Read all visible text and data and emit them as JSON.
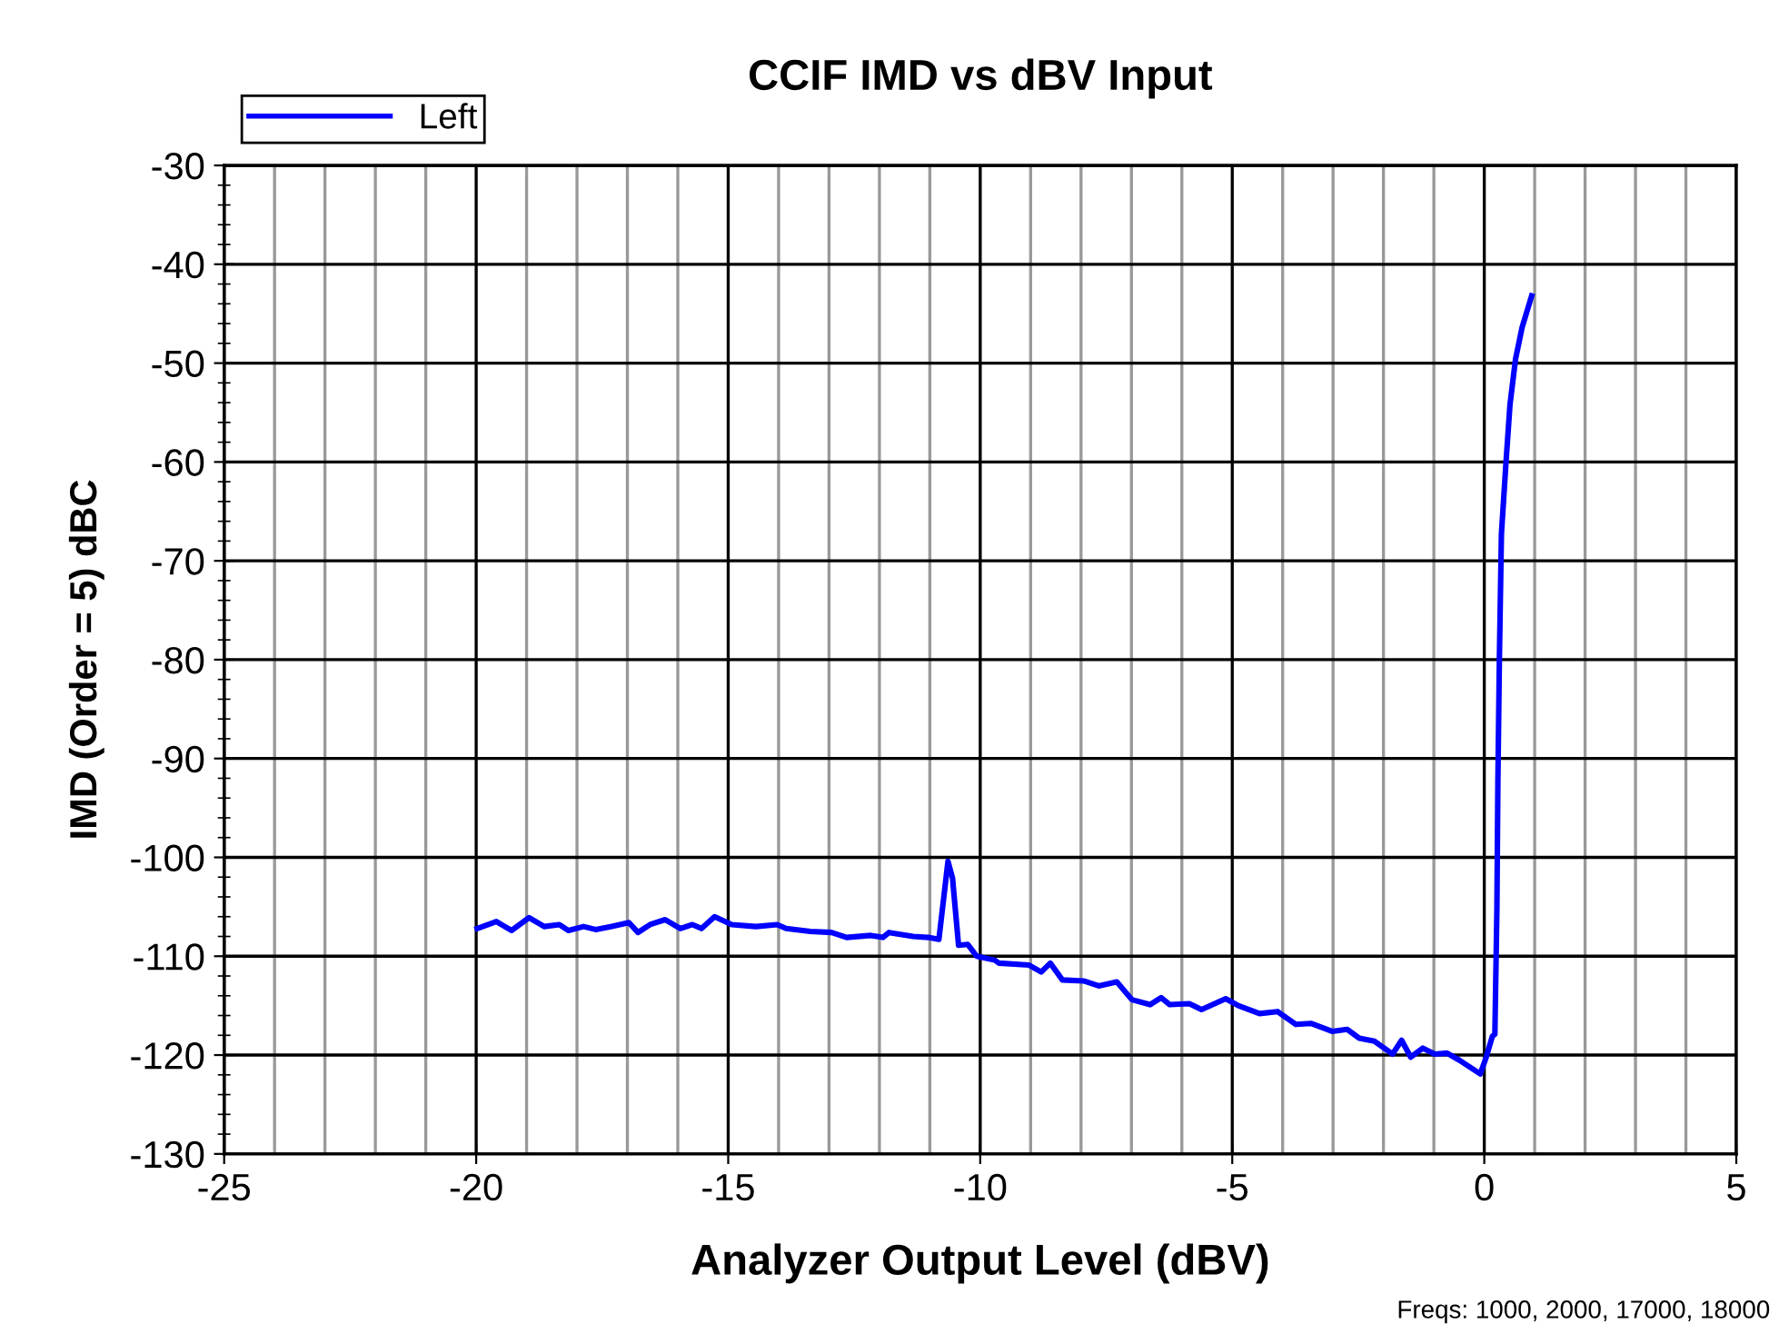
{
  "chart_data": {
    "type": "line",
    "title": "CCIF IMD vs dBV Input",
    "xlabel": "Analyzer Output Level (dBV)",
    "ylabel": "IMD (Order = 5) dBC",
    "annotations": [
      "Freqs: 1000, 2000, 17000, 18000"
    ],
    "xlim": [
      -25,
      5
    ],
    "xticks": [
      -25,
      -20,
      -15,
      -10,
      -5,
      0,
      5
    ],
    "ylim": [
      -130,
      -30
    ],
    "yticks": [
      -130,
      -120,
      -110,
      -100,
      -90,
      -80,
      -70,
      -60,
      -50,
      -40,
      -30
    ],
    "grid": true,
    "legend": "top left",
    "line_style": "solid",
    "marker": "none",
    "series": [
      {
        "name": "Left",
        "color": "#0000ff",
        "x": [
          -19.98,
          -19.6,
          -19.3,
          -18.95,
          -18.65,
          -18.35,
          -18.17,
          -17.87,
          -17.63,
          -17.33,
          -16.97,
          -16.79,
          -16.55,
          -16.25,
          -15.95,
          -15.71,
          -15.53,
          -15.27,
          -14.93,
          -14.45,
          -14.03,
          -13.85,
          -13.37,
          -12.95,
          -12.65,
          -12.17,
          -11.93,
          -11.81,
          -11.33,
          -11.03,
          -10.82,
          -10.64,
          -10.55,
          -10.43,
          -10.25,
          -10.07,
          -9.71,
          -9.63,
          -9.03,
          -8.79,
          -8.61,
          -8.37,
          -7.95,
          -7.65,
          -7.29,
          -6.99,
          -6.63,
          -6.41,
          -6.24,
          -5.85,
          -5.61,
          -5.13,
          -4.88,
          -4.46,
          -4.1,
          -3.74,
          -3.44,
          -3.02,
          -2.72,
          -2.48,
          -2.18,
          -1.82,
          -1.64,
          -1.46,
          -1.22,
          -0.98,
          -0.74,
          -0.5,
          -0.08,
          0.04,
          0.16,
          0.21,
          0.25,
          0.27,
          0.3,
          0.34,
          0.43,
          0.51,
          0.62,
          0.75,
          0.94
        ],
        "values": [
          -107.2,
          -106.5,
          -107.4,
          -106.1,
          -107.0,
          -106.8,
          -107.4,
          -107.0,
          -107.3,
          -107.0,
          -106.6,
          -107.6,
          -106.8,
          -106.3,
          -107.2,
          -106.8,
          -107.2,
          -106.0,
          -106.8,
          -107.0,
          -106.8,
          -107.2,
          -107.5,
          -107.6,
          -108.1,
          -107.9,
          -108.1,
          -107.6,
          -108.0,
          -108.1,
          -108.3,
          -100.4,
          -102.1,
          -108.9,
          -108.8,
          -110.0,
          -110.4,
          -110.7,
          -110.9,
          -111.6,
          -110.7,
          -112.4,
          -112.5,
          -113.0,
          -112.6,
          -114.4,
          -114.9,
          -114.2,
          -114.9,
          -114.8,
          -115.4,
          -114.3,
          -115.0,
          -115.8,
          -115.6,
          -116.9,
          -116.8,
          -117.6,
          -117.4,
          -118.3,
          -118.6,
          -119.9,
          -118.5,
          -120.2,
          -119.3,
          -119.9,
          -119.8,
          -120.5,
          -121.9,
          -120.2,
          -118.1,
          -117.9,
          -105.4,
          -92.3,
          -79.8,
          -67.3,
          -60.1,
          -54.2,
          -49.6,
          -46.4,
          -43.2
        ]
      }
    ]
  }
}
